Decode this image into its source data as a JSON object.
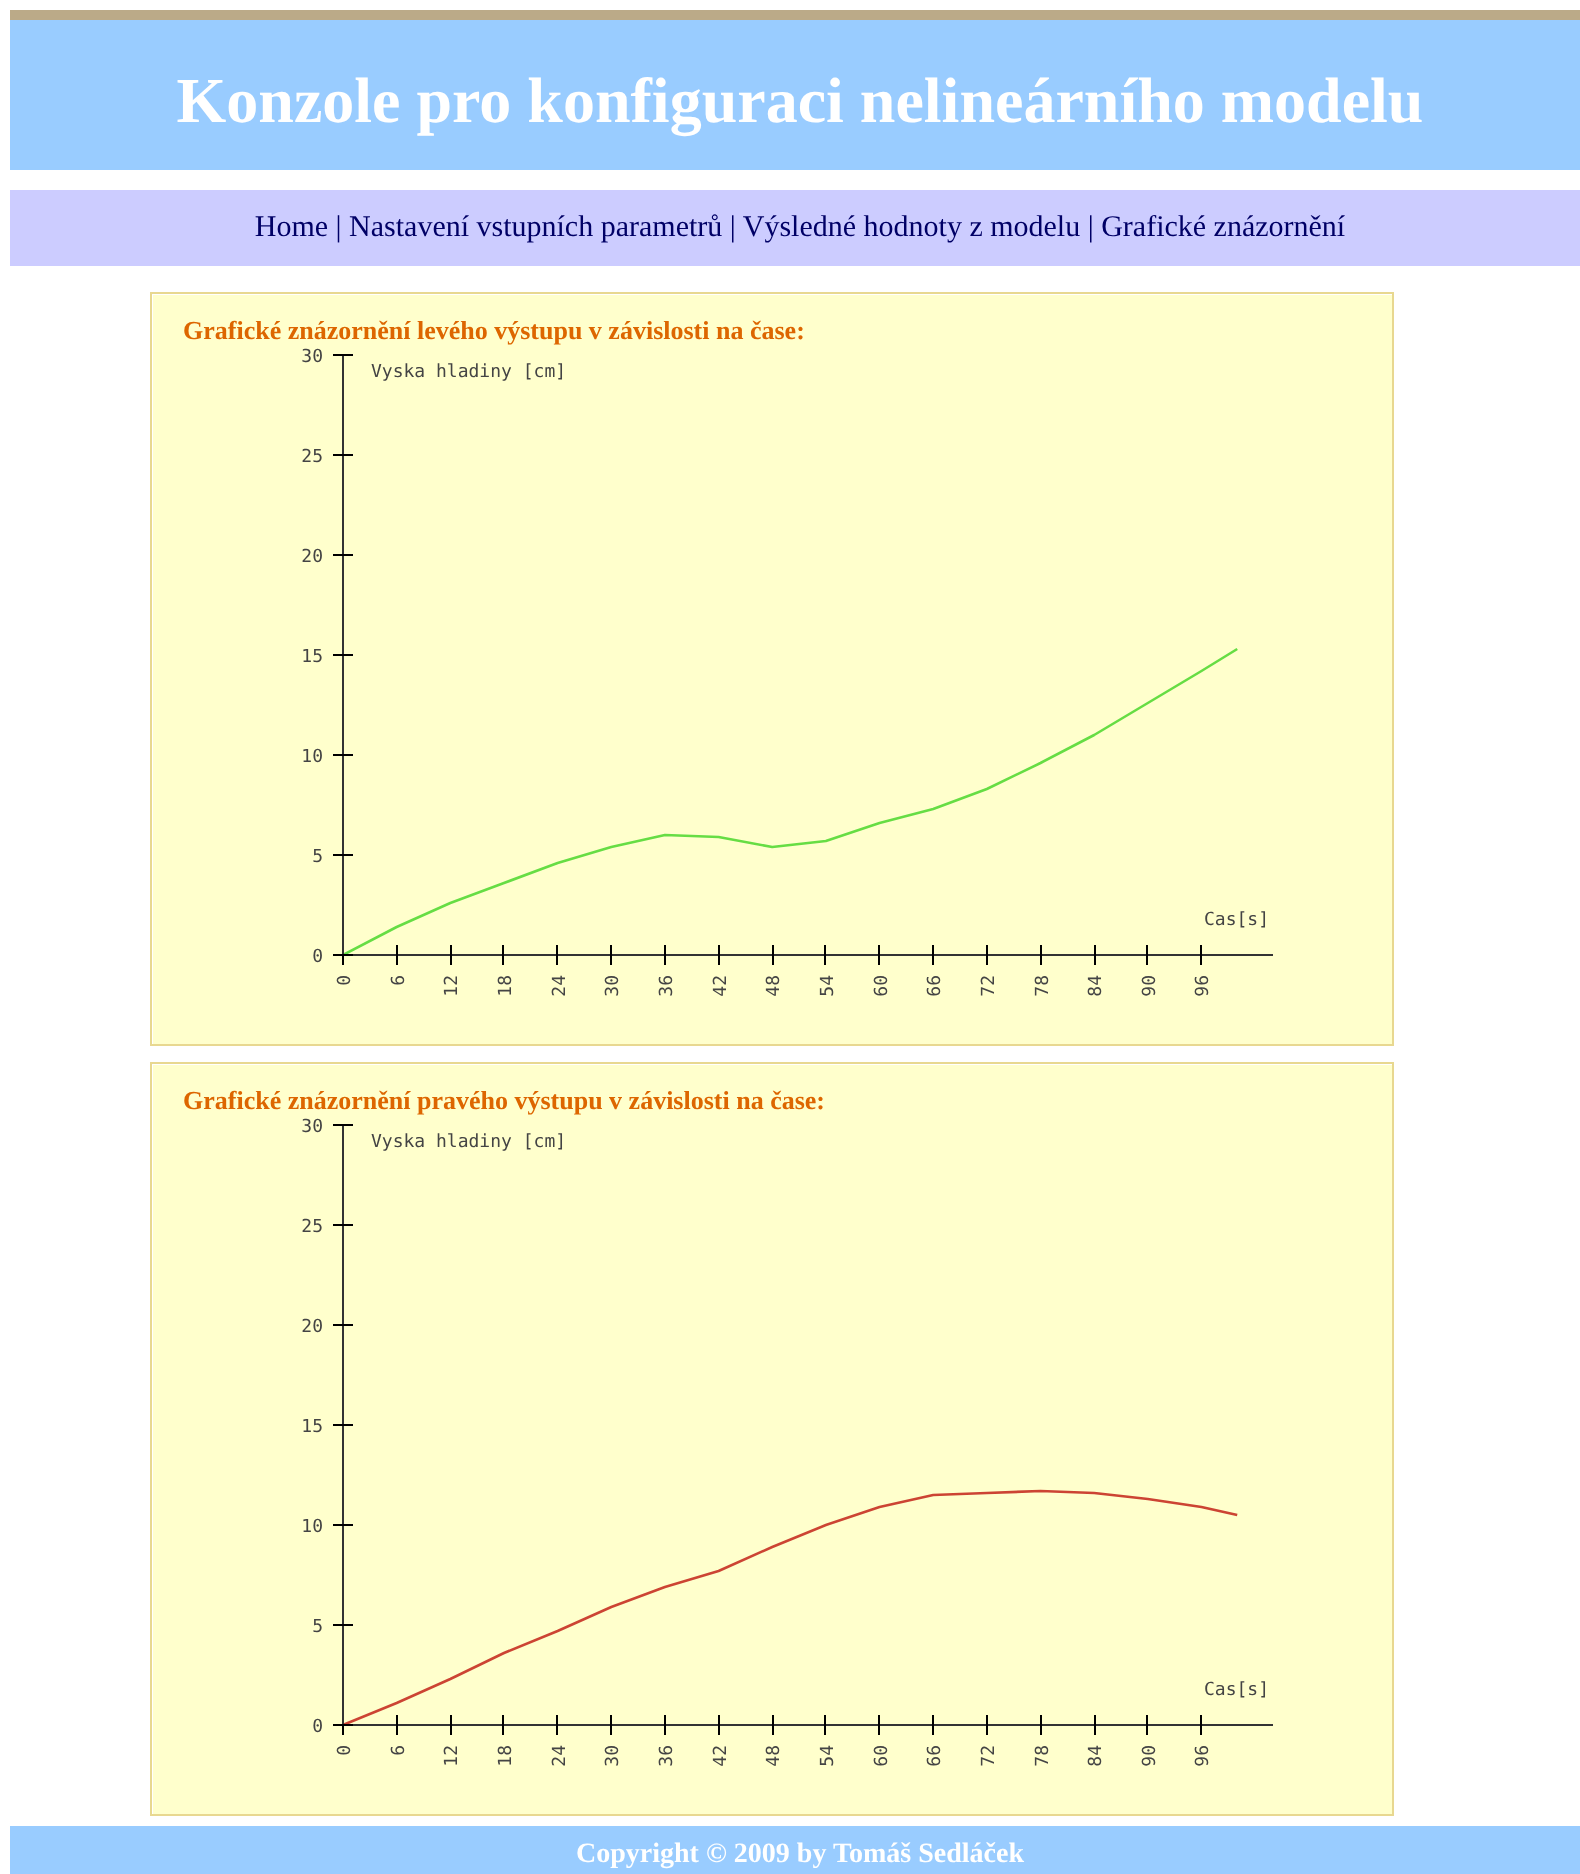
{
  "chart_data": [
    {
      "type": "line",
      "title": "Grafické znázornění levého výstupu v závislosti na čase:",
      "xlabel": "Cas[s]",
      "ylabel": "Vyska hladiny [cm]",
      "annotations": [
        "Konzole pro konfiguraci nelineárního modelu",
        "Home | Nastavení vstupních parametrů | Výsledné hodnoty z modelu | Grafické znázornění"
      ],
      "x": [
        0,
        6,
        12,
        18,
        24,
        30,
        36,
        42,
        48,
        54,
        60,
        66,
        72,
        78,
        84,
        90,
        96,
        100
      ],
      "series": [
        {
          "color": "#66dd44",
          "values": [
            0,
            1.4,
            2.6,
            3.6,
            4.6,
            5.4,
            6.0,
            5.9,
            5.4,
            5.7,
            6.6,
            7.3,
            8.3,
            9.6,
            11.0,
            12.6,
            14.2,
            15.3
          ]
        }
      ],
      "xlim": [
        0,
        104
      ],
      "ylim": [
        0,
        30
      ],
      "xticks": [
        0,
        6,
        12,
        18,
        24,
        30,
        36,
        42,
        48,
        54,
        60,
        66,
        72,
        78,
        84,
        90,
        96
      ],
      "yticks": [
        0,
        5,
        10,
        15,
        20,
        25,
        30
      ],
      "grid": false
    },
    {
      "type": "line",
      "title": "Grafické znázornění pravého výstupu v závislosti na čase:",
      "xlabel": "Cas[s]",
      "ylabel": "Vyska hladiny [cm]",
      "annotations": [
        "Copyright © 2009 by Tomáš Sedláček"
      ],
      "x": [
        0,
        6,
        12,
        18,
        24,
        30,
        36,
        42,
        48,
        54,
        60,
        66,
        72,
        78,
        84,
        90,
        96,
        100
      ],
      "series": [
        {
          "color": "#cc4433",
          "values": [
            0,
            1.1,
            2.3,
            3.6,
            4.7,
            5.9,
            6.9,
            7.7,
            8.9,
            10.0,
            10.9,
            11.5,
            11.6,
            11.7,
            11.6,
            11.3,
            10.9,
            10.5
          ]
        }
      ],
      "xlim": [
        0,
        104
      ],
      "ylim": [
        0,
        30
      ],
      "xticks": [
        0,
        6,
        12,
        18,
        24,
        30,
        36,
        42,
        48,
        54,
        60,
        66,
        72,
        78,
        84,
        90,
        96
      ],
      "yticks": [
        0,
        5,
        10,
        15,
        20,
        25,
        30
      ],
      "grid": false
    }
  ]
}
